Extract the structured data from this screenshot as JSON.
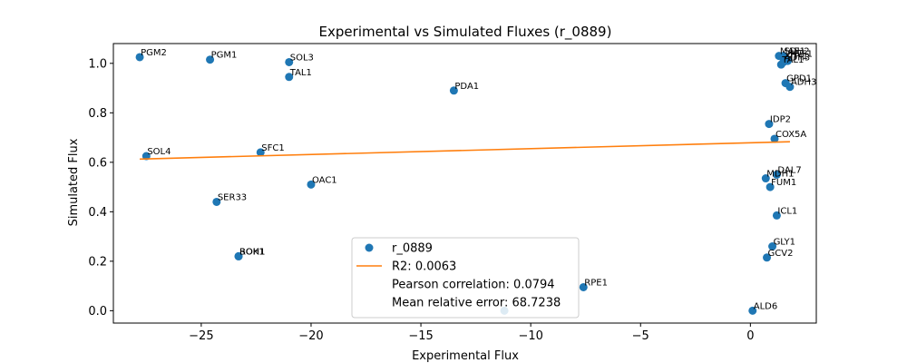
{
  "chart_data": {
    "type": "scatter",
    "title": "Experimental vs Simulated Fluxes (r_0889)",
    "xlabel": "Experimental Flux",
    "ylabel": "Simulated Flux",
    "xlim": [
      -29.0,
      3.0
    ],
    "ylim": [
      -0.05,
      1.08
    ],
    "xticks": [
      -25,
      -20,
      -15,
      -10,
      -5,
      0
    ],
    "yticks": [
      0.0,
      0.2,
      0.4,
      0.6,
      0.8,
      1.0
    ],
    "xtick_labels": [
      "−25",
      "−20",
      "−15",
      "−10",
      "−5",
      "0"
    ],
    "ytick_labels": [
      "0.0",
      "0.2",
      "0.4",
      "0.6",
      "0.8",
      "1.0"
    ],
    "grid": false,
    "legend_position": "bottom-center",
    "point_color": "#1f77b4",
    "line_color": "#ff7f0e",
    "series": [
      {
        "name": "r_0889",
        "kind": "scatter",
        "points": [
          {
            "label": "PGM2",
            "x": -27.8,
            "y": 1.025
          },
          {
            "label": "PGM1",
            "x": -24.6,
            "y": 1.015
          },
          {
            "label": "SOL3",
            "x": -21.0,
            "y": 1.005
          },
          {
            "label": "TAL1",
            "x": -21.0,
            "y": 0.945
          },
          {
            "label": "PDA1",
            "x": -13.5,
            "y": 0.89
          },
          {
            "label": "SOL4",
            "x": -27.5,
            "y": 0.625
          },
          {
            "label": "SFC1",
            "x": -22.3,
            "y": 0.64
          },
          {
            "label": "OAC1",
            "x": -20.0,
            "y": 0.51
          },
          {
            "label": "SER33",
            "x": -24.3,
            "y": 0.44
          },
          {
            "label": "BOH1",
            "x": -23.3,
            "y": 0.22
          },
          {
            "label": "ROK1",
            "x": -23.3,
            "y": 0.22
          },
          {
            "label": "RPE1",
            "x": -7.6,
            "y": 0.095
          },
          {
            "label": "",
            "x": -11.2,
            "y": 0.0
          },
          {
            "label": "ALD6",
            "x": 0.1,
            "y": 0.0
          },
          {
            "label": "GCV2",
            "x": 0.75,
            "y": 0.215
          },
          {
            "label": "GLY1",
            "x": 1.0,
            "y": 0.26
          },
          {
            "label": "ICL1",
            "x": 1.2,
            "y": 0.385
          },
          {
            "label": "FUM1",
            "x": 0.9,
            "y": 0.5
          },
          {
            "label": "MDH1",
            "x": 0.7,
            "y": 0.535
          },
          {
            "label": "DAL7",
            "x": 1.2,
            "y": 0.55
          },
          {
            "label": "COX5A",
            "x": 1.1,
            "y": 0.695
          },
          {
            "label": "IDP2",
            "x": 0.85,
            "y": 0.755
          },
          {
            "label": "GPD1",
            "x": 1.6,
            "y": 0.92
          },
          {
            "label": "ADH3",
            "x": 1.8,
            "y": 0.905
          },
          {
            "label": "MAE1",
            "x": 1.3,
            "y": 1.03
          },
          {
            "label": "SDH2",
            "x": 1.5,
            "y": 1.03
          },
          {
            "label": "TPI1",
            "x": 1.7,
            "y": 1.01
          },
          {
            "label": "ZWF1",
            "x": 1.6,
            "y": 1.02
          },
          {
            "label": "ADH3",
            "x": 1.5,
            "y": 1.005
          },
          {
            "label": "TAL1",
            "x": 1.4,
            "y": 0.995
          }
        ]
      },
      {
        "name": "R2: 0.0063",
        "kind": "line",
        "points": [
          {
            "x": -27.8,
            "y": 0.613
          },
          {
            "x": 1.8,
            "y": 0.683
          }
        ]
      }
    ],
    "legend": [
      {
        "marker": "dot",
        "text": "r_0889"
      },
      {
        "marker": "line",
        "text": "R2: 0.0063"
      },
      {
        "marker": "none",
        "text": "Pearson correlation: 0.0794"
      },
      {
        "marker": "none",
        "text": "Mean relative error: 68.7238"
      }
    ]
  }
}
